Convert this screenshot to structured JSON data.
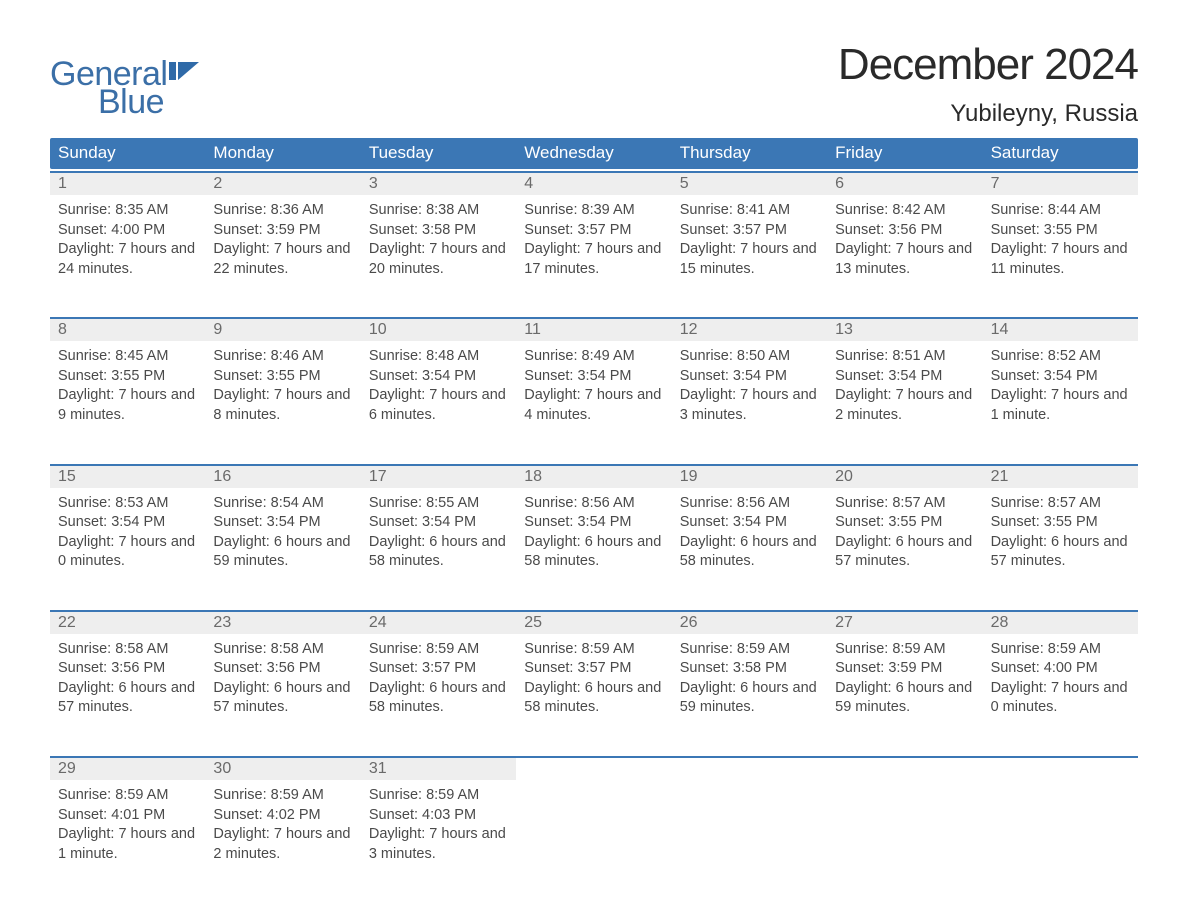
{
  "logo": {
    "text1": "General",
    "text2": "Blue",
    "brand_color": "#3b6fa7"
  },
  "title": "December 2024",
  "location": "Yubileyny, Russia",
  "header_bg": "#3b77b5",
  "header_fg": "#ffffff",
  "daynum_bg": "#eeeeee",
  "week_border": "#3b77b5",
  "day_labels": [
    "Sunday",
    "Monday",
    "Tuesday",
    "Wednesday",
    "Thursday",
    "Friday",
    "Saturday"
  ],
  "weeks": [
    [
      {
        "n": 1,
        "sunrise": "8:35 AM",
        "sunset": "4:00 PM",
        "daylight": "7 hours and 24 minutes."
      },
      {
        "n": 2,
        "sunrise": "8:36 AM",
        "sunset": "3:59 PM",
        "daylight": "7 hours and 22 minutes."
      },
      {
        "n": 3,
        "sunrise": "8:38 AM",
        "sunset": "3:58 PM",
        "daylight": "7 hours and 20 minutes."
      },
      {
        "n": 4,
        "sunrise": "8:39 AM",
        "sunset": "3:57 PM",
        "daylight": "7 hours and 17 minutes."
      },
      {
        "n": 5,
        "sunrise": "8:41 AM",
        "sunset": "3:57 PM",
        "daylight": "7 hours and 15 minutes."
      },
      {
        "n": 6,
        "sunrise": "8:42 AM",
        "sunset": "3:56 PM",
        "daylight": "7 hours and 13 minutes."
      },
      {
        "n": 7,
        "sunrise": "8:44 AM",
        "sunset": "3:55 PM",
        "daylight": "7 hours and 11 minutes."
      }
    ],
    [
      {
        "n": 8,
        "sunrise": "8:45 AM",
        "sunset": "3:55 PM",
        "daylight": "7 hours and 9 minutes."
      },
      {
        "n": 9,
        "sunrise": "8:46 AM",
        "sunset": "3:55 PM",
        "daylight": "7 hours and 8 minutes."
      },
      {
        "n": 10,
        "sunrise": "8:48 AM",
        "sunset": "3:54 PM",
        "daylight": "7 hours and 6 minutes."
      },
      {
        "n": 11,
        "sunrise": "8:49 AM",
        "sunset": "3:54 PM",
        "daylight": "7 hours and 4 minutes."
      },
      {
        "n": 12,
        "sunrise": "8:50 AM",
        "sunset": "3:54 PM",
        "daylight": "7 hours and 3 minutes."
      },
      {
        "n": 13,
        "sunrise": "8:51 AM",
        "sunset": "3:54 PM",
        "daylight": "7 hours and 2 minutes."
      },
      {
        "n": 14,
        "sunrise": "8:52 AM",
        "sunset": "3:54 PM",
        "daylight": "7 hours and 1 minute."
      }
    ],
    [
      {
        "n": 15,
        "sunrise": "8:53 AM",
        "sunset": "3:54 PM",
        "daylight": "7 hours and 0 minutes."
      },
      {
        "n": 16,
        "sunrise": "8:54 AM",
        "sunset": "3:54 PM",
        "daylight": "6 hours and 59 minutes."
      },
      {
        "n": 17,
        "sunrise": "8:55 AM",
        "sunset": "3:54 PM",
        "daylight": "6 hours and 58 minutes."
      },
      {
        "n": 18,
        "sunrise": "8:56 AM",
        "sunset": "3:54 PM",
        "daylight": "6 hours and 58 minutes."
      },
      {
        "n": 19,
        "sunrise": "8:56 AM",
        "sunset": "3:54 PM",
        "daylight": "6 hours and 58 minutes."
      },
      {
        "n": 20,
        "sunrise": "8:57 AM",
        "sunset": "3:55 PM",
        "daylight": "6 hours and 57 minutes."
      },
      {
        "n": 21,
        "sunrise": "8:57 AM",
        "sunset": "3:55 PM",
        "daylight": "6 hours and 57 minutes."
      }
    ],
    [
      {
        "n": 22,
        "sunrise": "8:58 AM",
        "sunset": "3:56 PM",
        "daylight": "6 hours and 57 minutes."
      },
      {
        "n": 23,
        "sunrise": "8:58 AM",
        "sunset": "3:56 PM",
        "daylight": "6 hours and 57 minutes."
      },
      {
        "n": 24,
        "sunrise": "8:59 AM",
        "sunset": "3:57 PM",
        "daylight": "6 hours and 58 minutes."
      },
      {
        "n": 25,
        "sunrise": "8:59 AM",
        "sunset": "3:57 PM",
        "daylight": "6 hours and 58 minutes."
      },
      {
        "n": 26,
        "sunrise": "8:59 AM",
        "sunset": "3:58 PM",
        "daylight": "6 hours and 59 minutes."
      },
      {
        "n": 27,
        "sunrise": "8:59 AM",
        "sunset": "3:59 PM",
        "daylight": "6 hours and 59 minutes."
      },
      {
        "n": 28,
        "sunrise": "8:59 AM",
        "sunset": "4:00 PM",
        "daylight": "7 hours and 0 minutes."
      }
    ],
    [
      {
        "n": 29,
        "sunrise": "8:59 AM",
        "sunset": "4:01 PM",
        "daylight": "7 hours and 1 minute."
      },
      {
        "n": 30,
        "sunrise": "8:59 AM",
        "sunset": "4:02 PM",
        "daylight": "7 hours and 2 minutes."
      },
      {
        "n": 31,
        "sunrise": "8:59 AM",
        "sunset": "4:03 PM",
        "daylight": "7 hours and 3 minutes."
      },
      null,
      null,
      null,
      null
    ]
  ],
  "labels": {
    "sunrise_prefix": "Sunrise: ",
    "sunset_prefix": "Sunset: ",
    "daylight_prefix": "Daylight: "
  }
}
